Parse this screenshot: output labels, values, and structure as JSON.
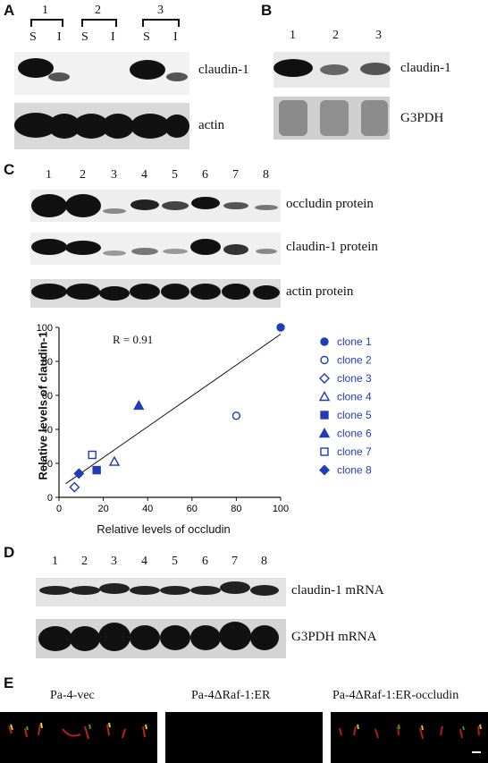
{
  "panelA": {
    "letter": "A",
    "groups": [
      "1",
      "2",
      "3"
    ],
    "fractions": [
      "S",
      "I",
      "S",
      "I",
      "S",
      "I"
    ],
    "labels": [
      "claudin-1",
      "actin"
    ]
  },
  "panelB": {
    "letter": "B",
    "lanes": [
      "1",
      "2",
      "3"
    ],
    "labels": [
      "claudin-1",
      "G3PDH"
    ]
  },
  "panelC": {
    "letter": "C",
    "lanes": [
      "1",
      "2",
      "3",
      "4",
      "5",
      "6",
      "7",
      "8"
    ],
    "labels": [
      "occludin protein",
      "claudin-1 protein",
      "actin protein"
    ]
  },
  "panelD": {
    "letter": "D",
    "lanes": [
      "1",
      "2",
      "3",
      "4",
      "5",
      "6",
      "7",
      "8"
    ],
    "labels": [
      "claudin-1 mRNA",
      "G3PDH mRNA"
    ]
  },
  "panelE": {
    "letter": "E",
    "titles": [
      "Pa-4-vec",
      "Pa-4ΔRaf-1:ER",
      "Pa-4ΔRaf-1:ER-occludin"
    ]
  },
  "chart_data": {
    "type": "scatter",
    "xlabel": "Relative levels of occludin",
    "ylabel": "Relative levels of claudin-1",
    "xlim": [
      0,
      100
    ],
    "ylim": [
      0,
      100
    ],
    "xticks": [
      "0",
      "20",
      "40",
      "60",
      "80",
      "100"
    ],
    "yticks": [
      "0",
      "20",
      "40",
      "60",
      "80",
      "100"
    ],
    "annotation": "R = 0.91",
    "series": [
      {
        "name": "clone 1",
        "marker": "circle-filled",
        "x": 100,
        "y": 100
      },
      {
        "name": "clone 2",
        "marker": "circle-open",
        "x": 80,
        "y": 48
      },
      {
        "name": "clone 3",
        "marker": "diamond-open",
        "x": 7,
        "y": 6
      },
      {
        "name": "clone 4",
        "marker": "triangle-open",
        "x": 25,
        "y": 21
      },
      {
        "name": "clone 5",
        "marker": "square-filled",
        "x": 17,
        "y": 16
      },
      {
        "name": "clone 6",
        "marker": "triangle-filled",
        "x": 36,
        "y": 54
      },
      {
        "name": "clone 7",
        "marker": "square-open",
        "x": 15,
        "y": 25
      },
      {
        "name": "clone 8",
        "marker": "diamond-filled",
        "x": 9,
        "y": 14
      }
    ],
    "trendline": {
      "x": [
        3,
        100
      ],
      "y": [
        8,
        96
      ]
    },
    "legend_position": "right",
    "grid": false,
    "color": "#1f3db5"
  }
}
